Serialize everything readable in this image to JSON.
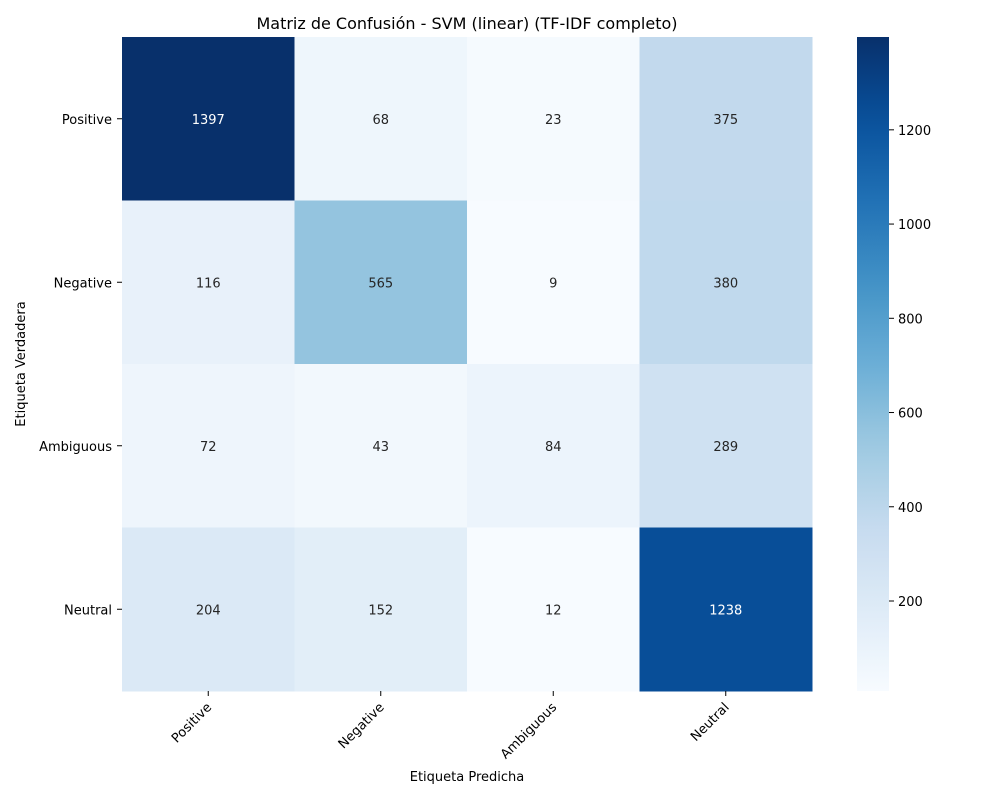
{
  "chart_data": {
    "type": "heatmap",
    "title": "Matriz de Confusión - SVM (linear) (TF-IDF completo)",
    "xlabel": "Etiqueta Predicha",
    "ylabel": "Etiqueta Verdadera",
    "row_labels": [
      "Positive",
      "Negative",
      "Ambiguous",
      "Neutral"
    ],
    "col_labels": [
      "Positive",
      "Negative",
      "Ambiguous",
      "Neutral"
    ],
    "values": [
      [
        1397,
        68,
        23,
        375
      ],
      [
        116,
        565,
        9,
        380
      ],
      [
        72,
        43,
        84,
        289
      ],
      [
        204,
        152,
        12,
        1238
      ]
    ],
    "colormap": "Blues",
    "vmin": 9,
    "vmax": 1397,
    "colorbar_ticks": [
      200,
      400,
      600,
      800,
      1000,
      1200
    ]
  }
}
